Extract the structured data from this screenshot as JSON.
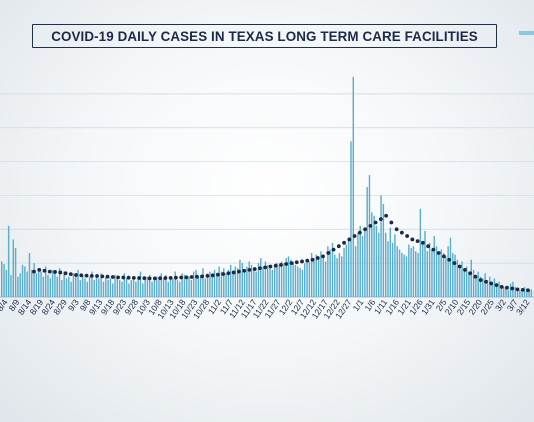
{
  "title": "COVID-19 DAILY CASES IN TEXAS LONG TERM CARE FACILITIES",
  "colors": {
    "bar": "#5aaecd",
    "line": "#1d2a44",
    "title": "#1a2a48",
    "grid": "#cfd7de"
  },
  "chart_data": {
    "type": "bar",
    "title": "COVID-19 DAILY CASES IN TEXAS LONG TERM CARE FACILITIES",
    "xlabel": "",
    "ylabel": "",
    "grid": true,
    "legend": "top-right",
    "tick_labels": [
      "8/4",
      "8/9",
      "8/14",
      "8/19",
      "8/24",
      "8/29",
      "9/3",
      "9/8",
      "9/13",
      "9/18",
      "9/23",
      "9/28",
      "10/3",
      "10/8",
      "10/13",
      "10/18",
      "10/23",
      "10/28",
      "11/2",
      "11/7",
      "11/12",
      "11/17",
      "11/22",
      "11/27",
      "12/2",
      "12/7",
      "12/12",
      "12/17",
      "12/22",
      "12/27",
      "1/1",
      "1/6",
      "1/11",
      "1/16",
      "1/21",
      "1/26",
      "1/31",
      "2/5",
      "2/10",
      "2/15",
      "2/20",
      "2/25",
      "3/2",
      "3/7",
      "3/12"
    ],
    "series": [
      {
        "type": "bar",
        "values": [
          210,
          195,
          160,
          420,
          130,
          340,
          290,
          120,
          140,
          190,
          180,
          150,
          260,
          160,
          200,
          140,
          170,
          150,
          120,
          180,
          130,
          110,
          160,
          140,
          120,
          170,
          100,
          150,
          110,
          120,
          90,
          140,
          120,
          160,
          100,
          130,
          110,
          90,
          120,
          150,
          100,
          130,
          110,
          140,
          90,
          120,
          100,
          110,
          80,
          130,
          120,
          100,
          90,
          140,
          110,
          80,
          100,
          120,
          90,
          110,
          150,
          80,
          100,
          120,
          130,
          90,
          110,
          120,
          100,
          140,
          110,
          130,
          90,
          120,
          110,
          150,
          100,
          90,
          140,
          130,
          110,
          120,
          100,
          150,
          160,
          120,
          130,
          170,
          110,
          140,
          150,
          130,
          160,
          140,
          180,
          150,
          170,
          140,
          160,
          190,
          150,
          180,
          170,
          220,
          200,
          160,
          180,
          210,
          190,
          170,
          150,
          200,
          230,
          180,
          210,
          190,
          170,
          160,
          180,
          200,
          190,
          210,
          200,
          230,
          240,
          220,
          210,
          190,
          180,
          170,
          160,
          200,
          220,
          210,
          260,
          230,
          250,
          240,
          270,
          230,
          210,
          300,
          280,
          320,
          250,
          230,
          260,
          240,
          290,
          310,
          350,
          920,
          1300,
          300,
          380,
          420,
          360,
          390,
          650,
          720,
          500,
          480,
          420,
          380,
          600,
          550,
          380,
          330,
          410,
          320,
          370,
          300,
          280,
          260,
          250,
          240,
          310,
          290,
          300,
          270,
          260,
          520,
          310,
          390,
          270,
          320,
          280,
          360,
          300,
          250,
          280,
          260,
          240,
          300,
          350,
          260,
          250,
          220,
          190,
          210,
          170,
          180,
          150,
          220,
          160,
          130,
          150,
          120,
          110,
          140,
          100,
          120,
          90,
          110,
          80,
          90,
          70,
          60,
          50,
          40,
          80,
          90,
          60,
          50,
          40,
          30,
          60,
          50,
          40,
          45
        ]
      },
      {
        "type": "line",
        "values": [
          150,
          160,
          155,
          150,
          148,
          145,
          140,
          135,
          130,
          128,
          126,
          125,
          124,
          122,
          120,
          118,
          116,
          115,
          114,
          113,
          112,
          111,
          110,
          110,
          111,
          112,
          113,
          114,
          115,
          116,
          118,
          120,
          122,
          125,
          128,
          132,
          136,
          140,
          145,
          150,
          155,
          160,
          165,
          170,
          175,
          180,
          185,
          190,
          195,
          200,
          205,
          210,
          215,
          220,
          230,
          240,
          260,
          280,
          300,
          320,
          340,
          360,
          380,
          400,
          420,
          440,
          460,
          480,
          440,
          400,
          380,
          360,
          340,
          330,
          320,
          300,
          280,
          260,
          240,
          220,
          200,
          180,
          160,
          140,
          120,
          100,
          90,
          80,
          70,
          60,
          55,
          50,
          45,
          42,
          40
        ]
      }
    ],
    "ylim": [
      0,
      1400
    ]
  }
}
